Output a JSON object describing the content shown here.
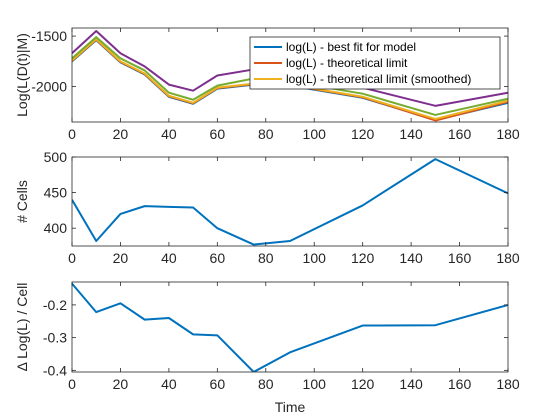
{
  "colors": {
    "blue": "#0072BD",
    "orange": "#D95319",
    "yellow": "#EDB120",
    "purple": "#7E2F8E",
    "green": "#77AC30"
  },
  "chart_data": [
    {
      "type": "line",
      "ylabel": "Log(L(D(t)|M)",
      "xlabel": "",
      "xlim": [
        0,
        180
      ],
      "ylim": [
        -2350,
        -1420
      ],
      "xticks": [
        0,
        20,
        40,
        60,
        80,
        100,
        120,
        140,
        160,
        180
      ],
      "yticks": [
        -2000,
        -1500
      ],
      "grid": false,
      "legend_position": "top-right",
      "x": [
        0,
        10,
        20,
        30,
        40,
        50,
        60,
        75,
        90,
        120,
        150,
        180
      ],
      "series": [
        {
          "name": "log(L) - best fit for model",
          "color": "#0072BD",
          "in_legend": true,
          "values": [
            -1750,
            -1540,
            -1760,
            -1880,
            -2100,
            -2170,
            -2020,
            -1980,
            -1990,
            -2110,
            -2330,
            -2160
          ]
        },
        {
          "name": "log(L) - theoretical limit",
          "color": "#D95319",
          "in_legend": true,
          "values": [
            -1745,
            -1535,
            -1755,
            -1875,
            -2095,
            -2165,
            -2015,
            -1975,
            -1985,
            -2105,
            -2335,
            -2150
          ]
        },
        {
          "name": "log(L) - theoretical limit (smoothed)",
          "color": "#EDB120",
          "in_legend": true,
          "values": [
            -1740,
            -1530,
            -1750,
            -1870,
            -2090,
            -2160,
            -2010,
            -1970,
            -1980,
            -2100,
            -2320,
            -2140
          ]
        },
        {
          "name": "",
          "color": "#7E2F8E",
          "in_legend": false,
          "values": [
            -1670,
            -1450,
            -1670,
            -1800,
            -1980,
            -2040,
            -1890,
            -1830,
            -1880,
            -2010,
            -2190,
            -2060
          ]
        },
        {
          "name": "",
          "color": "#77AC30",
          "in_legend": false,
          "values": [
            -1720,
            -1510,
            -1720,
            -1840,
            -2060,
            -2130,
            -1990,
            -1920,
            -1950,
            -2070,
            -2280,
            -2120
          ]
        }
      ]
    },
    {
      "type": "line",
      "ylabel": "# Cells",
      "xlabel": "",
      "xlim": [
        0,
        180
      ],
      "ylim": [
        375,
        500
      ],
      "xticks": [
        0,
        20,
        40,
        60,
        80,
        100,
        120,
        140,
        160,
        180
      ],
      "yticks": [
        400,
        450,
        500
      ],
      "grid": false,
      "x": [
        0,
        10,
        20,
        30,
        40,
        50,
        60,
        75,
        90,
        120,
        150,
        180
      ],
      "series": [
        {
          "name": "",
          "color": "#0072BD",
          "values": [
            440,
            382,
            420,
            431,
            430,
            429,
            400,
            377,
            382,
            432,
            497,
            449
          ]
        }
      ]
    },
    {
      "type": "line",
      "ylabel": "Δ Log(L) / Cell",
      "xlabel": "Time",
      "xlim": [
        0,
        180
      ],
      "ylim": [
        -0.405,
        -0.13
      ],
      "xticks": [
        0,
        20,
        40,
        60,
        80,
        100,
        120,
        140,
        160,
        180
      ],
      "yticks": [
        -0.4,
        -0.3,
        -0.2
      ],
      "grid": false,
      "x": [
        0,
        10,
        20,
        30,
        40,
        50,
        60,
        75,
        90,
        120,
        150,
        180
      ],
      "series": [
        {
          "name": "",
          "color": "#0072BD",
          "values": [
            -0.135,
            -0.222,
            -0.195,
            -0.245,
            -0.24,
            -0.29,
            -0.293,
            -0.405,
            -0.345,
            -0.263,
            -0.262,
            -0.2
          ]
        }
      ]
    }
  ]
}
